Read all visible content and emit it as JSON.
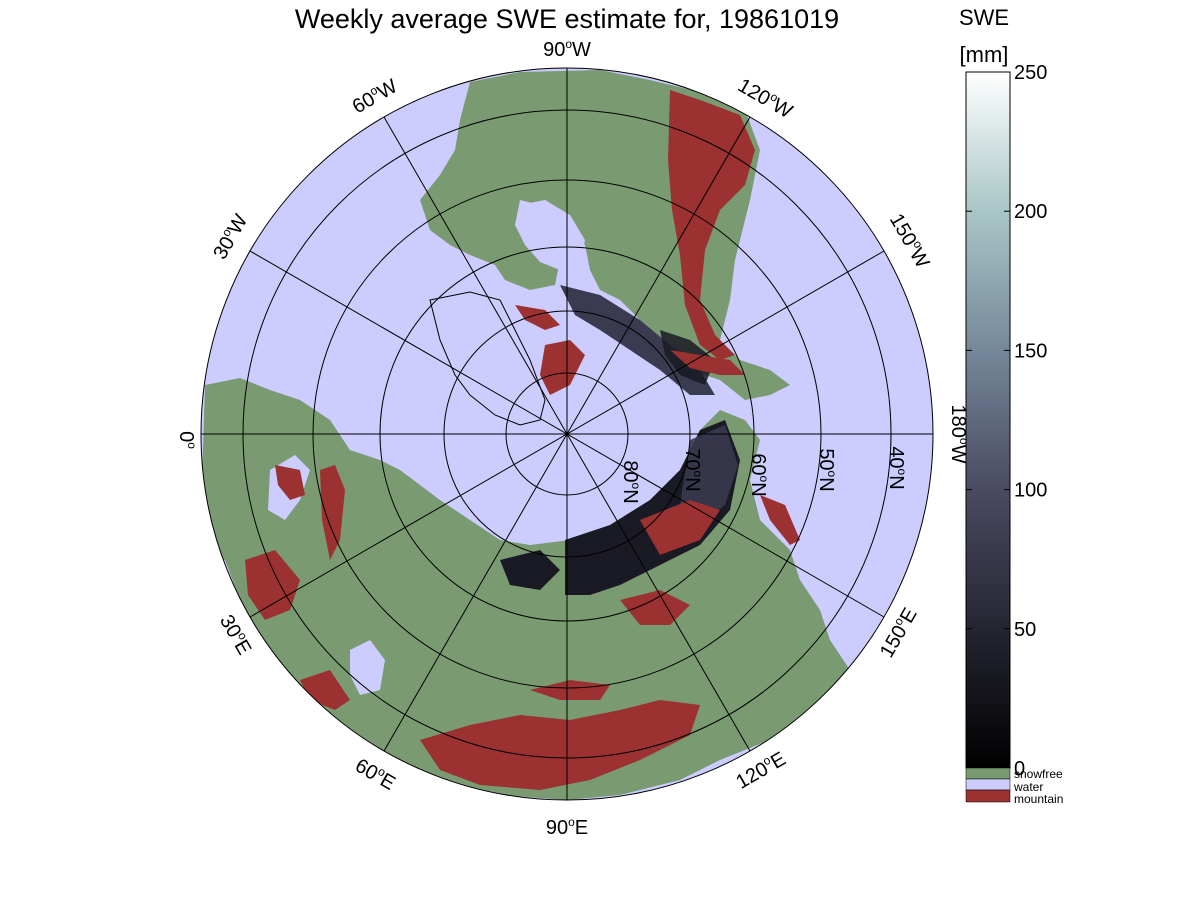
{
  "title": "Weekly average SWE estimate for, 19861019",
  "colorbar": {
    "label_line1": "SWE",
    "label_line2": "[mm]",
    "min": 0,
    "max": 250,
    "ticks": [
      "0",
      "50",
      "100",
      "150",
      "200",
      "250"
    ],
    "categories": [
      {
        "label": "snowfree",
        "color": "#7a9b72"
      },
      {
        "label": "water",
        "color": "#ccccff"
      },
      {
        "label": "mountain",
        "color": "#9b3131"
      }
    ]
  },
  "map": {
    "projection": "north polar stereographic",
    "colors": {
      "ocean": "#ccccff",
      "land": "#7a9b72",
      "mountain": "#9b3131",
      "snow_low": "#101018",
      "snow_mid": "#3a3a50"
    },
    "meridian_labels": [
      {
        "text": "90",
        "sup": "o",
        "suffix": "W"
      },
      {
        "text": "120",
        "sup": "o",
        "suffix": "W"
      },
      {
        "text": "150",
        "sup": "o",
        "suffix": "W"
      },
      {
        "text": "180",
        "sup": "o",
        "suffix": "W"
      },
      {
        "text": "150",
        "sup": "o",
        "suffix": "E"
      },
      {
        "text": "120",
        "sup": "o",
        "suffix": "E"
      },
      {
        "text": "90",
        "sup": "o",
        "suffix": "E"
      },
      {
        "text": "60",
        "sup": "o",
        "suffix": "E"
      },
      {
        "text": "30",
        "sup": "o",
        "suffix": "E"
      },
      {
        "text": "0",
        "sup": "o",
        "suffix": ""
      },
      {
        "text": "30",
        "sup": "o",
        "suffix": "W"
      },
      {
        "text": "60",
        "sup": "o",
        "suffix": "W"
      }
    ],
    "parallel_labels": [
      {
        "text": "80",
        "sup": "o",
        "suffix": "N"
      },
      {
        "text": "70",
        "sup": "o",
        "suffix": "N"
      },
      {
        "text": "60",
        "sup": "o",
        "suffix": "N"
      },
      {
        "text": "50",
        "sup": "o",
        "suffix": "N"
      },
      {
        "text": "40",
        "sup": "o",
        "suffix": "N"
      }
    ]
  }
}
